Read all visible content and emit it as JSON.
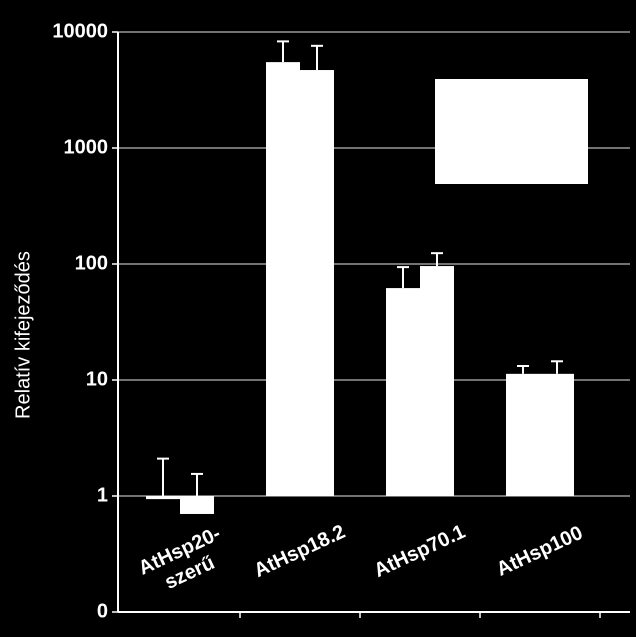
{
  "chart_data": {
    "type": "bar",
    "y_label": "Relatív kifejeződés",
    "categories": [
      "AtHsp20-szerű",
      "AtHsp18.2",
      "AtHsp70.1",
      "AtHsp100"
    ],
    "series": [
      {
        "color": "#ffffff",
        "values": [
          0.94,
          5500,
          62,
          11.3
        ],
        "errors": [
          1.16,
          2800,
          32,
          1.9
        ]
      },
      {
        "color": "#ffffff",
        "values": [
          0.7,
          4700,
          96,
          11.3
        ],
        "errors": [
          0.85,
          2900,
          28,
          3.2
        ]
      }
    ],
    "log_scale": true,
    "ylim": [
      0.1,
      10000
    ],
    "yticks": [
      {
        "value": 0.1,
        "label": "0"
      },
      1,
      10,
      100,
      1000,
      10000
    ],
    "grid": true,
    "legend": "top-right"
  }
}
